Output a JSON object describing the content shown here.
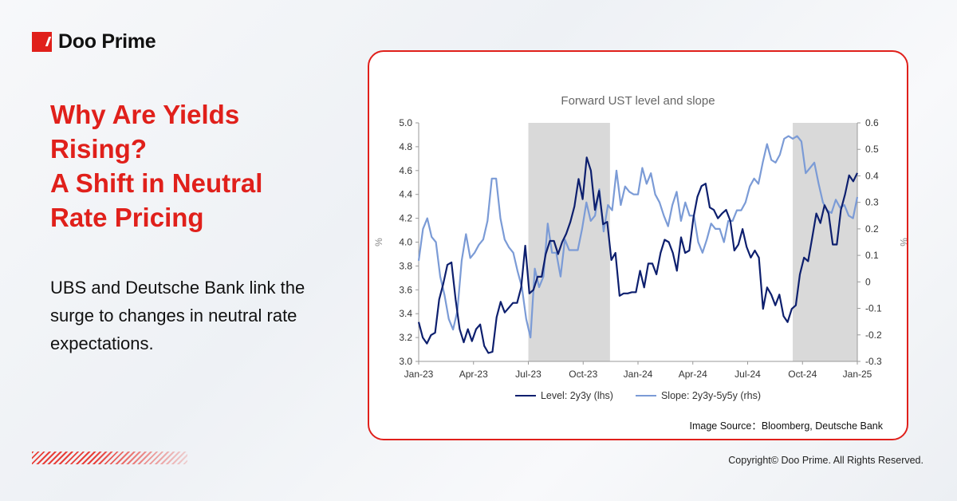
{
  "brand": {
    "name": "Doo Prime",
    "accent": "#e0201b"
  },
  "headline": {
    "lines": [
      "Why Are Yields",
      "Rising?",
      "A Shift in Neutral",
      "Rate Pricing"
    ]
  },
  "description": "UBS and Deutsche Bank link the surge to changes in neutral rate expectations.",
  "source": "Image Source：Bloomberg, Deutsche Bank",
  "copyright": "Copyright© Doo Prime. All Rights Reserved.",
  "chart_data": {
    "type": "line",
    "title": "Forward UST level and slope",
    "ylabel_left": "%",
    "ylabel_right": "%",
    "x_range": [
      "2023-01",
      "2025-01"
    ],
    "x_ticks": [
      "Jan-23",
      "Apr-23",
      "Jul-23",
      "Oct-23",
      "Jan-24",
      "Apr-24",
      "Jul-24",
      "Oct-24",
      "Jan-25"
    ],
    "ylim_left": [
      3.0,
      5.0
    ],
    "y_ticks_left": [
      "5.0",
      "4.8",
      "4.6",
      "4.4",
      "4.2",
      "4.0",
      "3.8",
      "3.6",
      "3.4",
      "3.2",
      "3.0"
    ],
    "ylim_right": [
      -0.3,
      0.6
    ],
    "y_ticks_right": [
      "0.6",
      "0.5",
      "0.4",
      "0.3",
      "0.2",
      "0.1",
      "0",
      "-0.1",
      "-0.2",
      "-0.3"
    ],
    "shaded_periods": [
      [
        "2023-07",
        "2023-11-15"
      ],
      [
        "2024-09-15",
        "2025-01"
      ]
    ],
    "grid": false,
    "legend_position": "bottom",
    "series": [
      {
        "name": "Level: 2y3y (lhs)",
        "axis": "left",
        "color": "#0d1f6e",
        "values": [
          3.33,
          3.2,
          3.15,
          3.22,
          3.24,
          3.52,
          3.65,
          3.81,
          3.83,
          3.52,
          3.27,
          3.16,
          3.27,
          3.17,
          3.27,
          3.31,
          3.13,
          3.07,
          3.08,
          3.37,
          3.5,
          3.41,
          3.45,
          3.49,
          3.49,
          3.62,
          3.97,
          3.57,
          3.6,
          3.71,
          3.71,
          3.9,
          4.01,
          4.01,
          3.9,
          4.0,
          4.07,
          4.17,
          4.3,
          4.53,
          4.36,
          4.71,
          4.6,
          4.27,
          4.43,
          4.15,
          4.17,
          3.85,
          3.91,
          3.55,
          3.57,
          3.57,
          3.58,
          3.58,
          3.76,
          3.62,
          3.82,
          3.82,
          3.73,
          3.91,
          4.02,
          4.0,
          3.91,
          3.76,
          4.04,
          3.91,
          3.93,
          4.2,
          4.38,
          4.47,
          4.49,
          4.29,
          4.27,
          4.2,
          4.24,
          4.27,
          4.18,
          3.93,
          3.98,
          4.11,
          3.96,
          3.87,
          3.93,
          3.87,
          3.44,
          3.62,
          3.56,
          3.47,
          3.56,
          3.38,
          3.33,
          3.44,
          3.47,
          3.73,
          3.87,
          3.84,
          4.04,
          4.24,
          4.16,
          4.31,
          4.24,
          3.98,
          3.98,
          4.27,
          4.4,
          4.56,
          4.51,
          4.58
        ]
      },
      {
        "name": "Slope: 2y3y-5y5y (rhs)",
        "axis": "right",
        "color": "#7b9bd6",
        "values": [
          0.08,
          0.2,
          0.24,
          0.17,
          0.15,
          0.02,
          -0.05,
          -0.14,
          -0.18,
          -0.11,
          0.08,
          0.18,
          0.09,
          0.11,
          0.14,
          0.16,
          0.23,
          0.39,
          0.39,
          0.24,
          0.16,
          0.13,
          0.11,
          0.04,
          -0.02,
          -0.14,
          -0.21,
          0.05,
          -0.02,
          0.02,
          0.22,
          0.11,
          0.11,
          0.02,
          0.16,
          0.12,
          0.12,
          0.12,
          0.2,
          0.3,
          0.23,
          0.25,
          0.35,
          0.19,
          0.29,
          0.27,
          0.42,
          0.29,
          0.36,
          0.34,
          0.33,
          0.33,
          0.43,
          0.37,
          0.41,
          0.33,
          0.3,
          0.25,
          0.21,
          0.29,
          0.34,
          0.23,
          0.3,
          0.25,
          0.25,
          0.15,
          0.11,
          0.16,
          0.22,
          0.2,
          0.2,
          0.15,
          0.23,
          0.23,
          0.27,
          0.27,
          0.3,
          0.36,
          0.39,
          0.37,
          0.45,
          0.52,
          0.46,
          0.45,
          0.48,
          0.54,
          0.55,
          0.54,
          0.55,
          0.53,
          0.41,
          0.43,
          0.45,
          0.37,
          0.3,
          0.27,
          0.26,
          0.31,
          0.28,
          0.29,
          0.25,
          0.24,
          0.32
        ]
      }
    ]
  }
}
